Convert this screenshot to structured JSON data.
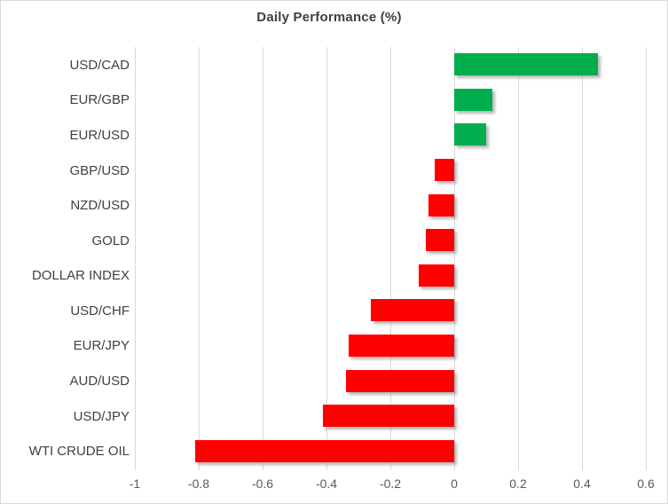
{
  "chart_data": {
    "type": "bar",
    "orientation": "horizontal",
    "title": "Daily Performance (%)",
    "categories": [
      "USD/CAD",
      "EUR/GBP",
      "EUR/USD",
      "GBP/USD",
      "NZD/USD",
      "GOLD",
      "DOLLAR INDEX",
      "USD/CHF",
      "EUR/JPY",
      "AUD/USD",
      "USD/JPY",
      "WTI CRUDE OIL"
    ],
    "values": [
      0.45,
      0.12,
      0.1,
      -0.06,
      -0.08,
      -0.09,
      -0.11,
      -0.26,
      -0.33,
      -0.34,
      -0.41,
      -0.81
    ],
    "xlim": [
      -1,
      0.6
    ],
    "xticks": [
      -1,
      -0.8,
      -0.6,
      -0.4,
      -0.2,
      0,
      0.2,
      0.4,
      0.6
    ],
    "xtick_labels": [
      "-1",
      "-0.8",
      "-0.6",
      "-0.4",
      "-0.2",
      "0",
      "0.2",
      "0.4",
      "0.6"
    ],
    "grid": "vertical",
    "legend": "none",
    "colors": {
      "positive": "#00ae4e",
      "negative": "#ff0000",
      "gridline": "#d9d9d9",
      "title_text": "#3f3f3f",
      "category_text": "#404040",
      "tick_text": "#595959"
    }
  }
}
